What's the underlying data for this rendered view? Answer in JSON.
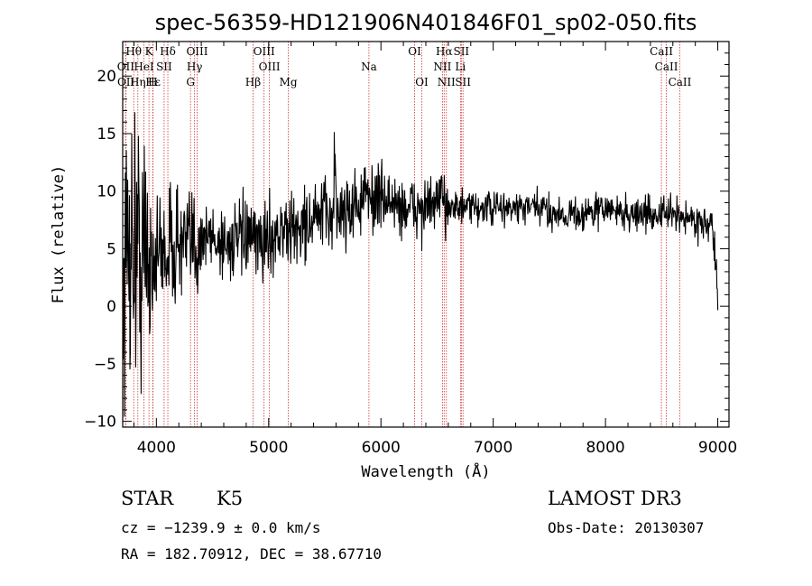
{
  "chart_data": {
    "type": "line",
    "title": "spec-56359-HD121906N401846F01_sp02-050.fits",
    "xlabel": "Wavelength (Å)",
    "ylabel": "Flux (relative)",
    "xlim": [
      3700,
      9100
    ],
    "ylim": [
      -10.5,
      23
    ],
    "xticks": [
      4000,
      5000,
      6000,
      7000,
      8000,
      9000
    ],
    "yticks": [
      -10,
      -5,
      0,
      5,
      10,
      15,
      20
    ],
    "line_color": "#000000",
    "marker_color": "#cc3333",
    "trend": {
      "x": [
        3700,
        3750,
        3800,
        3900,
        4000,
        4100,
        4200,
        4300,
        4400,
        4500,
        4600,
        4700,
        4800,
        4900,
        5000,
        5100,
        5200,
        5300,
        5400,
        5500,
        5600,
        5700,
        5800,
        5900,
        6000,
        6100,
        6200,
        6300,
        6400,
        6500,
        6600,
        6700,
        6800,
        6900,
        7000,
        7200,
        7400,
        7600,
        7800,
        8000,
        8200,
        8400,
        8600,
        8800,
        8950,
        9000
      ],
      "y": [
        1,
        6,
        5.5,
        4,
        4.5,
        5,
        5.5,
        5,
        6,
        6,
        5.5,
        5.5,
        6,
        5.5,
        6,
        6.5,
        6.5,
        7,
        7.5,
        8,
        8,
        8.5,
        9,
        9.5,
        9.5,
        9,
        8.5,
        8.5,
        8.5,
        9,
        9,
        8.5,
        8.5,
        8.5,
        8.5,
        8.5,
        8.5,
        8,
        8,
        8.5,
        8,
        8,
        8,
        7.5,
        7,
        1
      ]
    },
    "lines": [
      {
        "label": "Hθ",
        "wavelength": 3798,
        "row": 0
      },
      {
        "label": "K",
        "wavelength": 3934,
        "row": 0
      },
      {
        "label": "Hδ",
        "wavelength": 4102,
        "row": 0
      },
      {
        "label": "OIII",
        "wavelength": 4363,
        "row": 0
      },
      {
        "label": "OIII",
        "wavelength": 4959,
        "row": 0
      },
      {
        "label": "OI",
        "wavelength": 6300,
        "row": 0
      },
      {
        "label": "Hα",
        "wavelength": 6563,
        "row": 0
      },
      {
        "label": "SII",
        "wavelength": 6716,
        "row": 0
      },
      {
        "label": "CaII",
        "wavelength": 8498,
        "row": 0
      },
      {
        "label": "OII",
        "wavelength": 3727,
        "row": 1
      },
      {
        "label": "HeI",
        "wavelength": 3889,
        "row": 1
      },
      {
        "label": "SII",
        "wavelength": 4069,
        "row": 1
      },
      {
        "label": "Hγ",
        "wavelength": 4340,
        "row": 1
      },
      {
        "label": "OIII",
        "wavelength": 5007,
        "row": 1
      },
      {
        "label": "Na",
        "wavelength": 5893,
        "row": 1
      },
      {
        "label": "NII",
        "wavelength": 6548,
        "row": 1
      },
      {
        "label": "Li",
        "wavelength": 6708,
        "row": 1
      },
      {
        "label": "CaII",
        "wavelength": 8542,
        "row": 1
      },
      {
        "label": "OII",
        "wavelength": 3729,
        "row": 2
      },
      {
        "label": "Hε",
        "wavelength": 3970,
        "row": 2
      },
      {
        "label": "Hη",
        "wavelength": 3835,
        "row": 2
      },
      {
        "label": "H",
        "wavelength": 3968,
        "row": 2
      },
      {
        "label": "G",
        "wavelength": 4304,
        "row": 2
      },
      {
        "label": "Hβ",
        "wavelength": 4861,
        "row": 2
      },
      {
        "label": "Mg",
        "wavelength": 5175,
        "row": 2
      },
      {
        "label": "OI",
        "wavelength": 6364,
        "row": 2
      },
      {
        "label": "NII",
        "wavelength": 6583,
        "row": 2
      },
      {
        "label": "SII",
        "wavelength": 6731,
        "row": 2
      },
      {
        "label": "CaII",
        "wavelength": 8662,
        "row": 2
      }
    ]
  },
  "info": {
    "object_class": "STAR",
    "subclass": "K5",
    "survey": "LAMOST DR3",
    "velocity": "cz = −1239.9 ± 0.0 km/s",
    "obs_date": "Obs-Date: 20130307",
    "coords": "RA = 182.70912, DEC =  38.67710"
  }
}
